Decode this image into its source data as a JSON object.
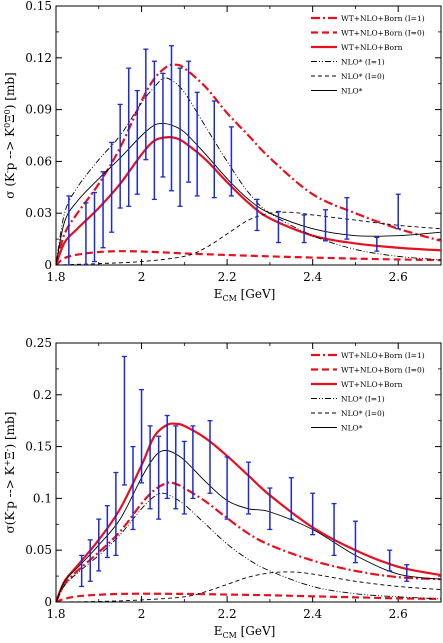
{
  "chart_data": [
    {
      "type": "line",
      "xlabel": "E_CM [GeV]",
      "xlabel_main": "E",
      "xlabel_sub": "CM",
      "xlabel_rest": " [GeV]",
      "ylabel": "σ (K⁻p --> K⁰Ξ⁰) [mb]",
      "ylabel_main": "σ (K",
      "ylabel_sup1": "-",
      "ylabel_mid": "p --> K",
      "ylabel_sup2": "0",
      "ylabel_xi": "Ξ",
      "ylabel_sup3": "0",
      "ylabel_end": ") [mb]",
      "xlim": [
        1.8,
        2.7
      ],
      "ylim": [
        0,
        0.15
      ],
      "xticks": [
        "1.8",
        "2",
        "2.2",
        "2.4",
        "2.6"
      ],
      "yticks": [
        "0",
        "0.03",
        "0.06",
        "0.09",
        "0.12",
        "0.15"
      ],
      "legend_position": "top-right",
      "series": [
        {
          "name": "WT+NLO+Born (I=1)",
          "color": "#e8101e",
          "style": "dashdot",
          "width": 2.2,
          "x": [
            1.8,
            1.82,
            1.85,
            1.9,
            1.95,
            2.0,
            2.03,
            2.06,
            2.08,
            2.1,
            2.15,
            2.2,
            2.25,
            2.3,
            2.4,
            2.5,
            2.6,
            2.7
          ],
          "y": [
            0,
            0.018,
            0.03,
            0.047,
            0.068,
            0.095,
            0.108,
            0.115,
            0.116,
            0.114,
            0.103,
            0.088,
            0.075,
            0.062,
            0.041,
            0.03,
            0.021,
            0.014
          ]
        },
        {
          "name": "WT+NLO+Born (I=0)",
          "color": "#e8101e",
          "style": "dashed",
          "width": 2.2,
          "x": [
            1.8,
            1.82,
            1.85,
            1.9,
            1.95,
            2.0,
            2.05,
            2.1,
            2.2,
            2.3,
            2.4,
            2.5,
            2.6,
            2.7
          ],
          "y": [
            0,
            0.004,
            0.006,
            0.0075,
            0.008,
            0.0078,
            0.0073,
            0.0067,
            0.0058,
            0.005,
            0.0043,
            0.0037,
            0.0032,
            0.0028
          ]
        },
        {
          "name": "WT+NLO+Born",
          "color": "#e8101e",
          "style": "solid",
          "width": 2.2,
          "x": [
            1.8,
            1.82,
            1.85,
            1.9,
            1.95,
            2.0,
            2.03,
            2.06,
            2.08,
            2.1,
            2.15,
            2.2,
            2.25,
            2.3,
            2.4,
            2.5,
            2.6,
            2.7
          ],
          "y": [
            0,
            0.013,
            0.021,
            0.033,
            0.047,
            0.064,
            0.072,
            0.074,
            0.0735,
            0.071,
            0.061,
            0.048,
            0.036,
            0.027,
            0.017,
            0.0125,
            0.01,
            0.0085
          ]
        },
        {
          "name": "NLO* (I=1)",
          "color": "#000000",
          "style": "dashdotdot",
          "width": 0.9,
          "x": [
            1.8,
            1.82,
            1.85,
            1.9,
            1.95,
            2.0,
            2.03,
            2.05,
            2.07,
            2.1,
            2.15,
            2.2,
            2.25,
            2.3,
            2.4,
            2.5,
            2.6,
            2.7
          ],
          "y": [
            0,
            0.03,
            0.045,
            0.061,
            0.075,
            0.094,
            0.103,
            0.108,
            0.107,
            0.1,
            0.08,
            0.06,
            0.042,
            0.03,
            0.017,
            0.009,
            0.005,
            0.003
          ]
        },
        {
          "name": "NLO* (I=0)",
          "color": "#000000",
          "style": "dashed",
          "width": 0.9,
          "x": [
            1.8,
            1.9,
            2.0,
            2.1,
            2.15,
            2.2,
            2.25,
            2.3,
            2.35,
            2.4,
            2.5,
            2.6,
            2.7
          ],
          "y": [
            0,
            0.0008,
            0.002,
            0.005,
            0.01,
            0.018,
            0.026,
            0.03,
            0.0305,
            0.029,
            0.026,
            0.023,
            0.021
          ]
        },
        {
          "name": "NLO*",
          "color": "#000000",
          "style": "solid",
          "width": 0.9,
          "x": [
            1.8,
            1.82,
            1.85,
            1.9,
            1.95,
            2.0,
            2.03,
            2.05,
            2.07,
            2.1,
            2.15,
            2.2,
            2.25,
            2.3,
            2.4,
            2.5,
            2.6,
            2.7
          ],
          "y": [
            0,
            0.025,
            0.037,
            0.05,
            0.062,
            0.075,
            0.081,
            0.082,
            0.081,
            0.077,
            0.064,
            0.05,
            0.038,
            0.03,
            0.021,
            0.017,
            0.017,
            0.019
          ]
        }
      ],
      "data_points": {
        "color": "#1a2ad8",
        "x": [
          1.83,
          1.87,
          1.89,
          1.91,
          1.93,
          1.95,
          1.97,
          1.99,
          2.01,
          2.03,
          2.05,
          2.07,
          2.09,
          2.11,
          2.13,
          2.17,
          2.21,
          2.27,
          2.32,
          2.38,
          2.43,
          2.48,
          2.55,
          2.6
        ],
        "y": [
          0.02,
          0.018,
          0.022,
          0.032,
          0.045,
          0.063,
          0.074,
          0.071,
          0.093,
          0.078,
          0.081,
          0.085,
          0.074,
          0.083,
          0.07,
          0.067,
          0.06,
          0.029,
          0.022,
          0.021,
          0.023,
          0.027,
          0.012,
          0.031
        ],
        "err": [
          0.02,
          0.018,
          0.02,
          0.022,
          0.026,
          0.03,
          0.04,
          0.03,
          0.032,
          0.04,
          0.03,
          0.042,
          0.04,
          0.035,
          0.03,
          0.028,
          0.02,
          0.009,
          0.009,
          0.008,
          0.009,
          0.012,
          0.004,
          0.01
        ]
      }
    },
    {
      "type": "line",
      "xlabel": "E_CM [GeV]",
      "xlabel_main": "E",
      "xlabel_sub": "CM",
      "xlabel_rest": " [GeV]",
      "ylabel": "σ(K⁻p --> K⁺Ξ⁻) [mb]",
      "ylabel_main": "σ(K",
      "ylabel_sup1": "-",
      "ylabel_mid": "p --> K",
      "ylabel_sup2": "+",
      "ylabel_xi": "Ξ",
      "ylabel_sup3": "-",
      "ylabel_end": ") [mb]",
      "xlim": [
        1.8,
        2.7
      ],
      "ylim": [
        0,
        0.25
      ],
      "xticks": [
        "1.8",
        "2",
        "2.2",
        "2.4",
        "2.6"
      ],
      "yticks": [
        "0",
        "0.05",
        "0.1",
        "0.15",
        "0.2",
        "0.25"
      ],
      "legend_position": "top-right",
      "series": [
        {
          "name": "WT+NLO+Born (I=1)",
          "color": "#e8101e",
          "style": "dashdot",
          "width": 2.2,
          "x": [
            1.8,
            1.82,
            1.85,
            1.9,
            1.95,
            2.0,
            2.03,
            2.06,
            2.08,
            2.1,
            2.15,
            2.2,
            2.25,
            2.3,
            2.4,
            2.5,
            2.6,
            2.7
          ],
          "y": [
            0,
            0.017,
            0.03,
            0.048,
            0.068,
            0.095,
            0.108,
            0.115,
            0.114,
            0.11,
            0.097,
            0.081,
            0.066,
            0.055,
            0.04,
            0.03,
            0.024,
            0.022
          ]
        },
        {
          "name": "WT+NLO+Born (I=0)",
          "color": "#e8101e",
          "style": "dashed",
          "width": 2.2,
          "x": [
            1.8,
            1.82,
            1.85,
            1.9,
            1.95,
            2.0,
            2.1,
            2.2,
            2.3,
            2.4,
            2.5,
            2.6,
            2.7
          ],
          "y": [
            0,
            0.003,
            0.0055,
            0.007,
            0.0078,
            0.008,
            0.0078,
            0.0072,
            0.0065,
            0.0055,
            0.0045,
            0.0035,
            0.003
          ]
        },
        {
          "name": "WT+NLO+Born",
          "color": "#e8101e",
          "style": "solid",
          "width": 2.2,
          "x": [
            1.8,
            1.82,
            1.85,
            1.9,
            1.95,
            2.0,
            2.03,
            2.06,
            2.08,
            2.1,
            2.15,
            2.2,
            2.25,
            2.3,
            2.4,
            2.5,
            2.6,
            2.7
          ],
          "y": [
            0,
            0.02,
            0.035,
            0.06,
            0.09,
            0.132,
            0.16,
            0.171,
            0.172,
            0.17,
            0.158,
            0.141,
            0.122,
            0.103,
            0.072,
            0.05,
            0.034,
            0.026
          ]
        },
        {
          "name": "NLO* (I=1)",
          "color": "#000000",
          "style": "dashdotdot",
          "width": 0.9,
          "x": [
            1.8,
            1.82,
            1.85,
            1.9,
            1.95,
            2.0,
            2.03,
            2.05,
            2.07,
            2.1,
            2.15,
            2.2,
            2.25,
            2.3,
            2.4,
            2.5,
            2.6,
            2.7
          ],
          "y": [
            0,
            0.016,
            0.028,
            0.045,
            0.065,
            0.09,
            0.102,
            0.105,
            0.102,
            0.094,
            0.075,
            0.056,
            0.041,
            0.03,
            0.015,
            0.008,
            0.005,
            0.003
          ]
        },
        {
          "name": "NLO* (I=0)",
          "color": "#000000",
          "style": "dashed",
          "width": 0.9,
          "x": [
            1.8,
            1.9,
            2.0,
            2.1,
            2.15,
            2.2,
            2.25,
            2.3,
            2.35,
            2.4,
            2.5,
            2.6,
            2.7
          ],
          "y": [
            0,
            0.0005,
            0.002,
            0.005,
            0.01,
            0.017,
            0.024,
            0.028,
            0.029,
            0.027,
            0.02,
            0.015,
            0.012
          ]
        },
        {
          "name": "NLO*",
          "color": "#000000",
          "style": "solid",
          "width": 0.9,
          "x": [
            1.8,
            1.82,
            1.85,
            1.9,
            1.95,
            2.0,
            2.03,
            2.05,
            2.07,
            2.1,
            2.15,
            2.2,
            2.25,
            2.3,
            2.4,
            2.5,
            2.6,
            2.7
          ],
          "y": [
            0,
            0.02,
            0.033,
            0.055,
            0.08,
            0.12,
            0.14,
            0.146,
            0.145,
            0.137,
            0.116,
            0.098,
            0.09,
            0.087,
            0.07,
            0.045,
            0.027,
            0.022
          ]
        }
      ],
      "data_points": {
        "color": "#1a2ad8",
        "x": [
          1.86,
          1.88,
          1.9,
          1.92,
          1.94,
          1.96,
          1.98,
          2.0,
          2.02,
          2.04,
          2.06,
          2.08,
          2.1,
          2.12,
          2.16,
          2.2,
          2.25,
          2.3,
          2.35,
          2.4,
          2.45,
          2.5,
          2.58,
          2.62
        ],
        "y": [
          0.03,
          0.04,
          0.055,
          0.068,
          0.085,
          0.175,
          0.11,
          0.16,
          0.13,
          0.12,
          0.14,
          0.13,
          0.12,
          0.135,
          0.14,
          0.11,
          0.11,
          0.09,
          0.1,
          0.085,
          0.07,
          0.058,
          0.04,
          0.028
        ]
      },
      "_": null
    }
  ]
}
